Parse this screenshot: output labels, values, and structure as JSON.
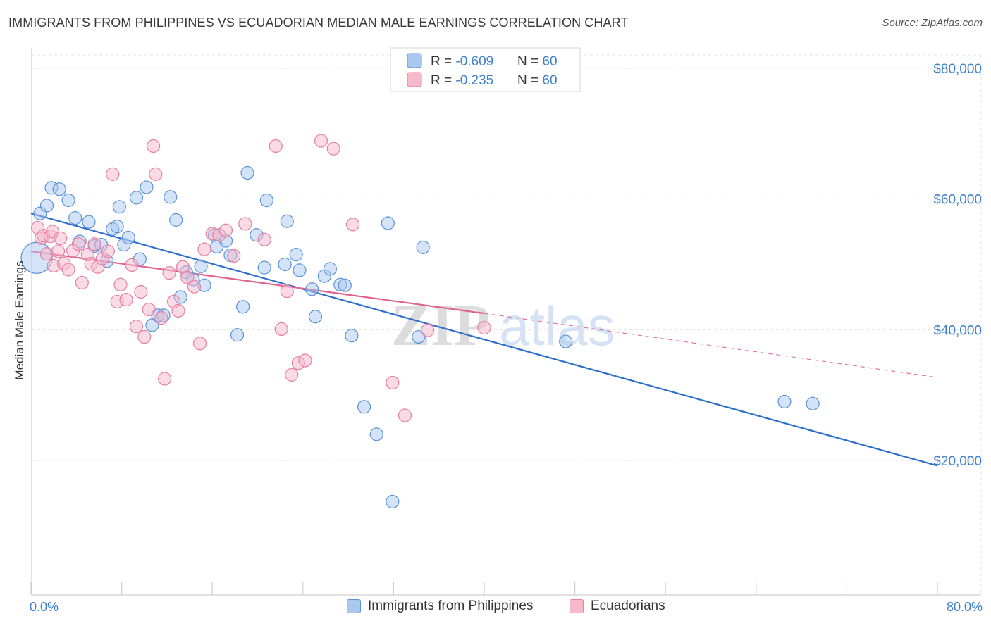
{
  "header": {
    "title": "IMMIGRANTS FROM PHILIPPINES VS ECUADORIAN MEDIAN MALE EARNINGS CORRELATION CHART",
    "source": "Source: ZipAtlas.com"
  },
  "watermark": {
    "zip": "ZIP",
    "atlas": "atlas"
  },
  "colors": {
    "blue_fill": "#aac8ef",
    "blue_stroke": "#5b92d8",
    "blue_line": "#2f6fcc",
    "pink_fill": "#f6b8cb",
    "pink_stroke": "#e87ea0",
    "pink_line": "#e0628f",
    "axis_text": "#3d7fd0",
    "grid": "#e3e3e3"
  },
  "chart_data": {
    "type": "scatter",
    "ylabel": "Median Male Earnings",
    "xlim": [
      0,
      80
    ],
    "ylim": [
      0,
      82000
    ],
    "x_tick_labels": [
      "0.0%",
      "80.0%"
    ],
    "y_ticks": [
      20000,
      40000,
      60000,
      80000
    ],
    "y_tick_labels": [
      "$20,000",
      "$40,000",
      "$60,000",
      "$80,000"
    ],
    "grid": "horizontal dashed",
    "legend_placement": "top-center",
    "stats": [
      {
        "r_label": "R = ",
        "r_value": "-0.609",
        "n_label": "N = ",
        "n_value": "60"
      },
      {
        "r_label": "R = ",
        "r_value": "-0.235",
        "n_label": "N = ",
        "n_value": "60"
      }
    ],
    "series": [
      {
        "name": "Immigrants from Philippines",
        "color": "#aac8ef",
        "trend": {
          "x": [
            0,
            80
          ],
          "y": [
            57800,
            19200
          ]
        },
        "points": [
          [
            0.5,
            51000
          ],
          [
            0.8,
            57800
          ],
          [
            1.4,
            59000
          ],
          [
            1.8,
            61700
          ],
          [
            2.5,
            61500
          ],
          [
            3.3,
            59800
          ],
          [
            3.9,
            57100
          ],
          [
            4.3,
            53500
          ],
          [
            5.1,
            56500
          ],
          [
            5.6,
            52800
          ],
          [
            6.2,
            53000
          ],
          [
            6.7,
            50500
          ],
          [
            7.2,
            55400
          ],
          [
            7.6,
            55800
          ],
          [
            7.8,
            58800
          ],
          [
            8.2,
            53000
          ],
          [
            8.6,
            54100
          ],
          [
            9.3,
            60200
          ],
          [
            9.6,
            50800
          ],
          [
            10.2,
            61800
          ],
          [
            10.7,
            40700
          ],
          [
            11.2,
            42200
          ],
          [
            11.7,
            42200
          ],
          [
            12.3,
            60300
          ],
          [
            12.8,
            56800
          ],
          [
            13.2,
            45000
          ],
          [
            13.7,
            48800
          ],
          [
            14.3,
            47700
          ],
          [
            15.0,
            49700
          ],
          [
            15.3,
            46800
          ],
          [
            16.2,
            54500
          ],
          [
            16.4,
            52700
          ],
          [
            17.2,
            53600
          ],
          [
            17.6,
            51400
          ],
          [
            18.2,
            39200
          ],
          [
            18.7,
            43500
          ],
          [
            19.1,
            64000
          ],
          [
            19.9,
            54500
          ],
          [
            20.6,
            49500
          ],
          [
            20.8,
            59800
          ],
          [
            22.4,
            50000
          ],
          [
            22.6,
            56600
          ],
          [
            23.4,
            51500
          ],
          [
            23.7,
            49100
          ],
          [
            24.8,
            46200
          ],
          [
            25.1,
            42000
          ],
          [
            25.9,
            48200
          ],
          [
            26.4,
            49300
          ],
          [
            27.3,
            46900
          ],
          [
            27.7,
            46800
          ],
          [
            28.3,
            39100
          ],
          [
            29.4,
            28200
          ],
          [
            30.5,
            24000
          ],
          [
            31.5,
            56300
          ],
          [
            31.9,
            13700
          ],
          [
            34.2,
            38900
          ],
          [
            34.6,
            52600
          ],
          [
            47.2,
            38200
          ],
          [
            66.5,
            29000
          ],
          [
            69.0,
            28700
          ]
        ]
      },
      {
        "name": "Ecuadorians",
        "color": "#f6b8cb",
        "trend": {
          "x": [
            0,
            40
          ],
          "y": [
            52000,
            42500
          ]
        },
        "trend_ext": {
          "x": [
            40,
            80
          ],
          "y": [
            42500,
            32700
          ]
        },
        "points": [
          [
            0.6,
            55600
          ],
          [
            0.9,
            54000
          ],
          [
            1.1,
            54400
          ],
          [
            1.4,
            51600
          ],
          [
            1.7,
            54300
          ],
          [
            1.9,
            55000
          ],
          [
            2.0,
            49800
          ],
          [
            2.4,
            52000
          ],
          [
            2.6,
            54000
          ],
          [
            2.9,
            50100
          ],
          [
            3.3,
            49200
          ],
          [
            3.7,
            52100
          ],
          [
            4.2,
            53100
          ],
          [
            4.5,
            47200
          ],
          [
            5.0,
            51500
          ],
          [
            5.3,
            50100
          ],
          [
            5.6,
            53100
          ],
          [
            5.9,
            49600
          ],
          [
            6.3,
            50900
          ],
          [
            6.8,
            52000
          ],
          [
            7.2,
            63800
          ],
          [
            7.6,
            44300
          ],
          [
            7.9,
            46900
          ],
          [
            8.4,
            44600
          ],
          [
            8.9,
            49900
          ],
          [
            9.3,
            40500
          ],
          [
            9.7,
            45800
          ],
          [
            10.0,
            38900
          ],
          [
            10.4,
            43100
          ],
          [
            10.8,
            68100
          ],
          [
            11.0,
            63800
          ],
          [
            11.5,
            41800
          ],
          [
            11.8,
            32500
          ],
          [
            12.2,
            48700
          ],
          [
            12.6,
            44300
          ],
          [
            13.0,
            42900
          ],
          [
            13.4,
            49600
          ],
          [
            13.8,
            48000
          ],
          [
            14.4,
            46600
          ],
          [
            14.9,
            37900
          ],
          [
            15.3,
            52300
          ],
          [
            16.0,
            54700
          ],
          [
            16.6,
            54500
          ],
          [
            17.2,
            55200
          ],
          [
            17.9,
            51300
          ],
          [
            18.9,
            56200
          ],
          [
            20.6,
            53800
          ],
          [
            21.6,
            68100
          ],
          [
            22.1,
            40100
          ],
          [
            22.6,
            45900
          ],
          [
            23.0,
            33100
          ],
          [
            23.6,
            34900
          ],
          [
            24.2,
            35300
          ],
          [
            25.6,
            68900
          ],
          [
            26.7,
            67700
          ],
          [
            28.4,
            56100
          ],
          [
            31.9,
            31900
          ],
          [
            33.0,
            26900
          ],
          [
            35.0,
            39900
          ],
          [
            40.0,
            40300
          ]
        ]
      }
    ]
  }
}
